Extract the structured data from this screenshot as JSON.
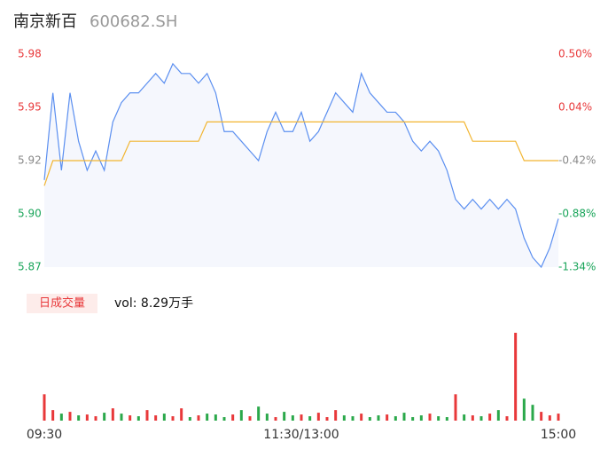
{
  "chart_data": {
    "type": "line",
    "title": "南京新百",
    "subtitle": "600682.SH",
    "x": [
      0,
      4,
      8,
      12,
      16,
      20,
      24,
      28,
      32,
      36,
      40,
      44,
      48,
      52,
      56,
      60,
      64,
      68,
      72,
      76,
      80,
      84,
      88,
      92,
      96,
      100,
      104,
      108,
      112,
      116,
      120,
      124,
      128,
      132,
      136,
      140,
      144,
      148,
      152,
      156,
      160,
      164,
      168,
      172,
      176,
      180,
      184,
      188,
      192,
      196,
      200,
      204,
      208,
      212,
      216,
      220,
      224,
      228,
      232,
      236,
      240
    ],
    "xlim": [
      0,
      240
    ],
    "xticks": [
      {
        "value": 0,
        "label": "09:30"
      },
      {
        "value": 120,
        "label": "11:30/13:00"
      },
      {
        "value": 240,
        "label": "15:00"
      }
    ],
    "series": [
      {
        "name": "price",
        "color": "#5b8ff0",
        "values": [
          5.915,
          5.96,
          5.92,
          5.96,
          5.935,
          5.92,
          5.93,
          5.92,
          5.945,
          5.955,
          5.96,
          5.96,
          5.965,
          5.97,
          5.965,
          5.975,
          5.97,
          5.97,
          5.965,
          5.97,
          5.96,
          5.94,
          5.94,
          5.935,
          5.93,
          5.925,
          5.94,
          5.95,
          5.94,
          5.94,
          5.95,
          5.935,
          5.94,
          5.95,
          5.96,
          5.955,
          5.95,
          5.97,
          5.96,
          5.955,
          5.95,
          5.95,
          5.945,
          5.935,
          5.93,
          5.935,
          5.93,
          5.92,
          5.905,
          5.9,
          5.905,
          5.9,
          5.905,
          5.9,
          5.905,
          5.9,
          5.885,
          5.875,
          5.87,
          5.88,
          5.895
        ]
      },
      {
        "name": "average",
        "color": "#f2b530",
        "values": [
          5.912,
          5.925,
          5.925,
          5.925,
          5.925,
          5.925,
          5.925,
          5.925,
          5.925,
          5.925,
          5.935,
          5.935,
          5.935,
          5.935,
          5.935,
          5.935,
          5.935,
          5.935,
          5.935,
          5.945,
          5.945,
          5.945,
          5.945,
          5.945,
          5.945,
          5.945,
          5.945,
          5.945,
          5.945,
          5.945,
          5.945,
          5.945,
          5.945,
          5.945,
          5.945,
          5.945,
          5.945,
          5.945,
          5.945,
          5.945,
          5.945,
          5.945,
          5.945,
          5.945,
          5.945,
          5.945,
          5.945,
          5.945,
          5.945,
          5.945,
          5.935,
          5.935,
          5.935,
          5.935,
          5.935,
          5.935,
          5.925,
          5.925,
          5.925,
          5.925,
          5.925
        ]
      }
    ],
    "ylim": [
      5.87,
      5.98
    ],
    "yticks": [
      {
        "value": 5.98,
        "label": "5.98"
      },
      {
        "value": 5.9525,
        "label": "5.95"
      },
      {
        "value": 5.925,
        "label": "5.92"
      },
      {
        "value": 5.8975,
        "label": "5.90"
      },
      {
        "value": 5.87,
        "label": "5.87"
      }
    ],
    "ytick_colors": [
      "#e8383a",
      "#e8383a",
      "#888888",
      "#1aa55a",
      "#1aa55a"
    ],
    "y2lim": [
      -1.34,
      0.5
    ],
    "y2ticks": [
      {
        "value": 0.5,
        "label": "0.50%"
      },
      {
        "value": 0.04,
        "label": "0.04%"
      },
      {
        "value": -0.42,
        "label": "-0.42%"
      },
      {
        "value": -0.88,
        "label": "-0.88%"
      },
      {
        "value": -1.34,
        "label": "-1.34%"
      }
    ],
    "volume_label": "日成交量",
    "volume_text": "vol: 8.29万手",
    "volume": {
      "values": [
        30,
        12,
        8,
        10,
        6,
        7,
        5,
        9,
        14,
        8,
        6,
        5,
        12,
        6,
        8,
        5,
        14,
        4,
        6,
        8,
        7,
        4,
        7,
        12,
        5,
        16,
        8,
        4,
        10,
        6,
        7,
        5,
        9,
        4,
        12,
        6,
        5,
        8,
        4,
        6,
        7,
        5,
        9,
        4,
        6,
        8,
        5,
        4,
        30,
        7,
        6,
        5,
        8,
        12,
        5,
        100,
        25,
        18,
        10,
        6,
        8
      ],
      "colors": [
        "#e8383a",
        "#e8383a",
        "#2aa84a",
        "#e8383a",
        "#2aa84a",
        "#e8383a",
        "#e8383a",
        "#2aa84a",
        "#e8383a",
        "#2aa84a",
        "#e8383a",
        "#2aa84a",
        "#e8383a",
        "#e8383a",
        "#2aa84a",
        "#e8383a",
        "#e8383a",
        "#2aa84a",
        "#e8383a",
        "#2aa84a",
        "#2aa84a",
        "#2aa84a",
        "#e8383a",
        "#2aa84a",
        "#e8383a",
        "#2aa84a",
        "#2aa84a",
        "#e8383a",
        "#2aa84a",
        "#2aa84a",
        "#e8383a",
        "#2aa84a",
        "#e8383a",
        "#e8383a",
        "#e8383a",
        "#2aa84a",
        "#2aa84a",
        "#e8383a",
        "#2aa84a",
        "#2aa84a",
        "#e8383a",
        "#2aa84a",
        "#2aa84a",
        "#2aa84a",
        "#2aa84a",
        "#e8383a",
        "#2aa84a",
        "#2aa84a",
        "#e8383a",
        "#2aa84a",
        "#e8383a",
        "#2aa84a",
        "#e8383a",
        "#2aa84a",
        "#e8383a",
        "#e8383a",
        "#2aa84a",
        "#2aa84a",
        "#e8383a",
        "#e8383a",
        "#e8383a"
      ]
    }
  }
}
